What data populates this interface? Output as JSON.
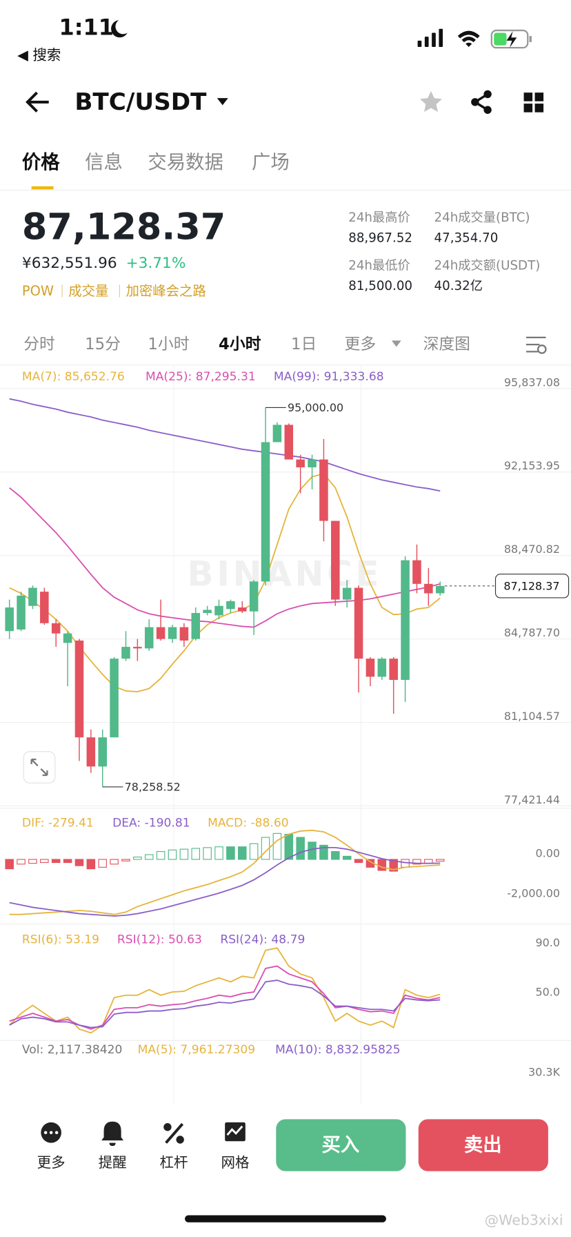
{
  "status_bar": {
    "time": "1:11",
    "back": "◀ 搜索"
  },
  "header": {
    "symbol": "BTC/USDT"
  },
  "tabs": [
    "价格",
    "信息",
    "交易数据",
    "广场"
  ],
  "ticker": {
    "price": "87,128.37",
    "cny": "¥632,551.96",
    "change": "+3.71%",
    "tags": [
      "POW",
      "成交量",
      "加密峰会之路"
    ],
    "stats": [
      {
        "label": "24h最高价",
        "value": "88,967.52"
      },
      {
        "label": "24h成交量(BTC)",
        "value": "47,354.70"
      },
      {
        "label": "24h最低价",
        "value": "81,500.00"
      },
      {
        "label": "24h成交额(USDT)",
        "value": "40.32亿"
      }
    ]
  },
  "intervals": [
    "分时",
    "15分",
    "1小时",
    "4小时",
    "1日",
    "更多",
    "深度图"
  ],
  "chart_data": [
    {
      "type": "candlestick",
      "watermark": "BINANCE",
      "up_color": "#52b98a",
      "down_color": "#e4525f",
      "open": [
        85135,
        85205,
        86247,
        86873,
        85483,
        84614,
        84718,
        80445,
        79159,
        80445,
        83919,
        84440,
        84371,
        85309,
        84788,
        85309,
        84788,
        85934,
        85830,
        86108,
        86178,
        86004,
        87324,
        93474,
        94239,
        92710,
        92362,
        92710,
        90000,
        86525,
        87046,
        83919,
        83120,
        83919,
        82981,
        88262,
        87220,
        86803
      ],
      "high": [
        86525,
        86873,
        87150,
        87046,
        85656,
        85135,
        84788,
        80792,
        80792,
        83989,
        85135,
        84788,
        85656,
        86525,
        85413,
        85483,
        86178,
        86247,
        86525,
        86525,
        86456,
        87394,
        95000,
        94350,
        94300,
        92918,
        92918,
        93613,
        90000,
        87394,
        87150,
        83989,
        83989,
        83989,
        88436,
        88957,
        87915,
        87324
      ],
      "low": [
        84788,
        85135,
        86108,
        85413,
        84440,
        82703,
        79402,
        78881,
        78258.52,
        80445,
        83815,
        83815,
        84267,
        84718,
        84614,
        84440,
        84718,
        85830,
        85656,
        85934,
        85934,
        84961,
        87150,
        93474,
        92710,
        91216,
        91390,
        89096,
        86247,
        86178,
        82425,
        82703,
        82981,
        81487,
        82008,
        86803,
        86247,
        86700
      ],
      "close": [
        86178,
        86699,
        87046,
        85483,
        85031,
        85031,
        80445,
        79159,
        80445,
        83919,
        84440,
        84371,
        85309,
        84788,
        85309,
        84718,
        85934,
        86073,
        86247,
        86456,
        86004,
        87324,
        93474,
        94239,
        92710,
        92362,
        92710,
        90000,
        86525,
        87046,
        83919,
        83120,
        83919,
        82981,
        88262,
        87220,
        86803,
        87128.37
      ],
      "series": [
        {
          "name": "MA(7): 85,652.76",
          "color": "#e6b43c",
          "values": [
            87046,
            86803,
            86456,
            86073,
            85656,
            85135,
            84440,
            83815,
            83224,
            82703,
            82495,
            82460,
            82599,
            83050,
            83676,
            84267,
            84927,
            85413,
            85726,
            85934,
            86073,
            86351,
            87394,
            88957,
            90521,
            91390,
            91945,
            92084,
            91459,
            90173,
            88610,
            87220,
            86178,
            85865,
            85900,
            86108,
            86178,
            86595
          ]
        },
        {
          "name": "MA(25): 87,295.31",
          "color": "#d94fb0",
          "values": [
            91459,
            91042,
            90521,
            90000,
            89478,
            88888,
            88262,
            87637,
            87046,
            86629,
            86351,
            86073,
            85900,
            85795,
            85726,
            85656,
            85587,
            85552,
            85483,
            85413,
            85344,
            85309,
            85587,
            85900,
            86108,
            86247,
            86351,
            86386,
            86421,
            86456,
            86490,
            86560,
            86664,
            86768,
            86873,
            86977,
            87081,
            87220
          ]
        },
        {
          "name": "MA(99): 91,333.68",
          "color": "#8a5ec9",
          "values": [
            95385,
            95281,
            95142,
            95038,
            94934,
            94795,
            94690,
            94586,
            94447,
            94343,
            94239,
            94134,
            93995,
            93891,
            93787,
            93683,
            93579,
            93474,
            93370,
            93266,
            93162,
            93092,
            93023,
            92953,
            92884,
            92814,
            92710,
            92606,
            92432,
            92258,
            92084,
            91945,
            91806,
            91702,
            91598,
            91494,
            91424,
            91320
          ]
        }
      ],
      "ylim": [
        77421.44,
        95837.08
      ],
      "yticks": [
        {
          "value": 95837.08,
          "label": "95,837.08"
        },
        {
          "value": 92153.95,
          "label": "92,153.95"
        },
        {
          "value": 88470.82,
          "label": "88,470.82"
        },
        {
          "value": 84787.7,
          "label": "84,787.70"
        },
        {
          "value": 81104.57,
          "label": "81,104.57"
        },
        {
          "value": 77421.44,
          "label": "77,421.44"
        }
      ],
      "grid": true,
      "high_label": {
        "value": 95000,
        "label": "95,000.00"
      },
      "low_label": {
        "value": 78258.52,
        "label": "78,258.52"
      },
      "last_price": {
        "value": 87128.37,
        "label": "87,128.37"
      }
    },
    {
      "type": "macd",
      "up_color": "#52b98a",
      "down_color": "#e4525f",
      "series": [
        {
          "name": "DIF: -279.41",
          "kind": "line",
          "color": "#e6b43c",
          "values": [
            -2744,
            -2744,
            -2705,
            -2666,
            -2626,
            -2587,
            -2548,
            -2587,
            -2666,
            -2744,
            -2626,
            -2352,
            -2156,
            -1960,
            -1764,
            -1568,
            -1411,
            -1254,
            -1058,
            -862,
            -627,
            -196,
            392,
            941,
            1254,
            1411,
            1450,
            1372,
            1098,
            706,
            274,
            -118,
            -392,
            -510,
            -392,
            -353,
            -314,
            -279.41
          ]
        },
        {
          "name": "DEA: -190.81",
          "kind": "line",
          "color": "#8a5ec9",
          "values": [
            -2156,
            -2274,
            -2391,
            -2470,
            -2548,
            -2626,
            -2705,
            -2744,
            -2783,
            -2822,
            -2783,
            -2705,
            -2587,
            -2470,
            -2313,
            -2156,
            -1999,
            -1842,
            -1686,
            -1490,
            -1294,
            -1019,
            -666,
            -274,
            78,
            353,
            510,
            588,
            588,
            510,
            353,
            196,
            39,
            -78,
            -157,
            -196,
            -196,
            -190.81
          ]
        },
        {
          "name": "MACD: -88.60",
          "kind": "bar",
          "color": "#e6b43c",
          "values": [
            -470,
            -235,
            -196,
            -157,
            -157,
            -157,
            -314,
            -470,
            -392,
            -235,
            -78,
            118,
            235,
            392,
            470,
            510,
            549,
            588,
            627,
            627,
            627,
            784,
            1098,
            1294,
            1254,
            1098,
            862,
            706,
            392,
            157,
            -157,
            -392,
            -549,
            -588,
            -392,
            -235,
            -196,
            -88.6
          ]
        }
      ],
      "ylim": [
        -3140,
        2550
      ],
      "yticks": [
        {
          "value": 0,
          "label": "0.00"
        },
        {
          "value": -2000,
          "label": "-2,000.00"
        }
      ],
      "grid": false
    },
    {
      "type": "rsi",
      "series": [
        {
          "name": "RSI(6): 53.19",
          "kind": "line",
          "color": "#e6b43c",
          "values": [
            28.4,
            37.9,
            44.3,
            37.9,
            31.6,
            34.8,
            25.2,
            22.1,
            28.4,
            50.6,
            52.5,
            52.5,
            57.0,
            52.5,
            55.1,
            55.7,
            60.2,
            63.3,
            66.5,
            63.3,
            67.8,
            66.5,
            88.7,
            90.6,
            76.0,
            69.7,
            66.5,
            50.6,
            31.6,
            37.9,
            31.6,
            28.4,
            31.6,
            26.5,
            57.0,
            52.5,
            50.6,
            53.19
          ]
        },
        {
          "name": "RSI(12): 50.63",
          "kind": "line",
          "color": "#d94fb0",
          "values": [
            31.6,
            34.8,
            37.9,
            34.8,
            31.6,
            32.9,
            28.4,
            25.2,
            28.4,
            41.1,
            42.4,
            42.4,
            44.9,
            43.7,
            44.9,
            45.6,
            48.1,
            50.0,
            52.5,
            51.3,
            53.8,
            55.1,
            74.1,
            76.0,
            69.7,
            66.5,
            63.3,
            53.8,
            42.4,
            43.7,
            41.1,
            39.2,
            39.8,
            37.9,
            52.5,
            50.0,
            48.7,
            50.63
          ]
        },
        {
          "name": "RSI(24): 48.79",
          "kind": "line",
          "color": "#8a5ec9",
          "values": [
            28.4,
            33.5,
            34.8,
            33.5,
            31.0,
            31.0,
            28.4,
            26.5,
            27.1,
            37.3,
            38.6,
            38.6,
            39.8,
            39.8,
            41.1,
            41.7,
            43.7,
            44.9,
            46.8,
            46.2,
            48.1,
            49.4,
            63.3,
            64.6,
            61.4,
            60.2,
            58.3,
            51.9,
            43.7,
            43.7,
            42.4,
            41.1,
            41.1,
            39.8,
            50.0,
            48.7,
            48.1,
            48.79
          ]
        }
      ],
      "ylim": [
        16,
        110
      ],
      "yticks": [
        {
          "value": 90,
          "label": "90.0"
        },
        {
          "value": 50,
          "label": "50.0"
        }
      ],
      "grid": false
    },
    {
      "type": "volume",
      "series": [
        {
          "name": "Vol: 2,117.38420",
          "color": "#777777"
        },
        {
          "name": "MA(5): 7,961.27309",
          "color": "#e6b43c"
        },
        {
          "name": "MA(10): 8,832.95825",
          "color": "#8a5ec9"
        }
      ],
      "tick_label": "30.3K"
    }
  ],
  "toolbar": [
    "更多",
    "提醒",
    "杠杆",
    "网格"
  ],
  "buttons": {
    "buy": "买入",
    "sell": "卖出"
  },
  "watermark": "@Web3xixi"
}
